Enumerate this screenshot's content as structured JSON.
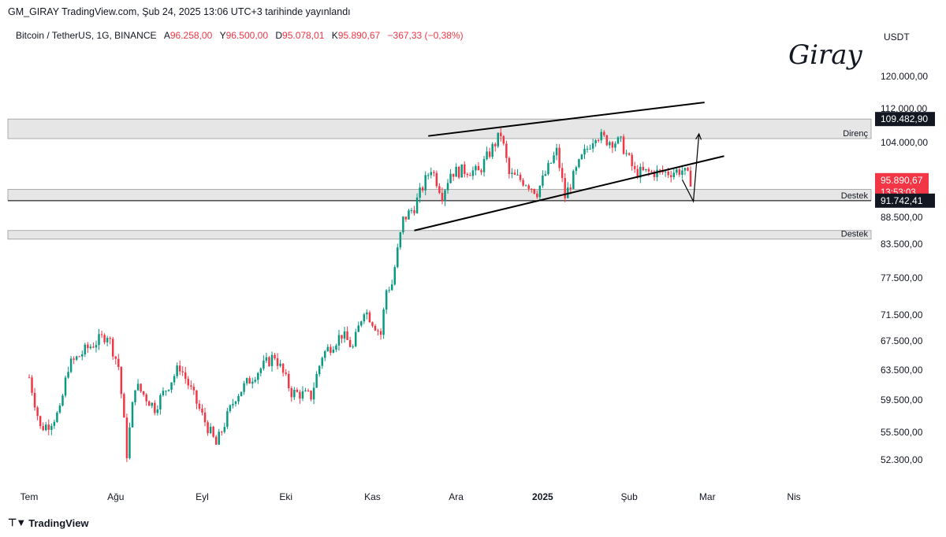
{
  "header": {
    "published": "GM_GIRAY TradingView.com, Şub 24, 2025 13:06 UTC+3 tarihinde yayınlandı"
  },
  "legend": {
    "symbol": "Bitcoin / TetherUS, 1G, BINANCE",
    "open_label": "A",
    "open": "96.258,00",
    "high_label": "Y",
    "high": "96.500,00",
    "low_label": "D",
    "low": "95.078,01",
    "close_label": "K",
    "close": "95.890,67",
    "change": "−367,33 (−0,38%)"
  },
  "watermark": "Giray",
  "footer": {
    "brand": "TradingView",
    "logo": "TV-logo-icon"
  },
  "colors": {
    "up": "#089981",
    "down": "#f23645",
    "zone": "#e3e3e3",
    "line": "#000000"
  },
  "chart_data": {
    "type": "candlestick",
    "symbol": "Bitcoin / TetherUS",
    "interval": "1G",
    "y_axis_unit": "USDT",
    "y_ticks": [
      "120.000,00",
      "112.000,00",
      "104.000,00",
      "88.500,00",
      "83.500,00",
      "77.500,00",
      "71.500,00",
      "67.500,00",
      "63.500,00",
      "59.500,00",
      "55.500,00",
      "52.300,00"
    ],
    "y_tick_values": [
      120000,
      112000,
      104000,
      88500,
      83500,
      77500,
      71500,
      67500,
      63500,
      59500,
      55500,
      52300
    ],
    "x_ticks": [
      "Tem",
      "Ağu",
      "Eyl",
      "Eki",
      "Kas",
      "Ara",
      "2025",
      "Şub",
      "Mar",
      "Nis"
    ],
    "x_tick_dates": [
      "2024-07-01",
      "2024-08-01",
      "2024-09-01",
      "2024-10-01",
      "2024-11-01",
      "2024-12-01",
      "2025-01-01",
      "2025-02-01",
      "2025-03-01",
      "2025-04-01"
    ],
    "price_labels": [
      {
        "text": "109.482,90",
        "value": 109482.9,
        "style": "dark"
      },
      {
        "text": "95.890,67",
        "value": 95890.67,
        "style": "current",
        "sub": "13:53:03"
      },
      {
        "text": "91.742,41",
        "value": 91742.41,
        "style": "dark"
      }
    ],
    "zones": [
      {
        "label": "Direnç",
        "from": 104900,
        "to": 109482.9
      },
      {
        "label": "Destek",
        "from": 91742.41,
        "to": 94000
      },
      {
        "label": "Destek",
        "from": 84400,
        "to": 86000
      }
    ],
    "trendlines": [
      {
        "from": [
          "2024-11-21",
          105500
        ],
        "to": [
          "2025-02-28",
          113500
        ]
      },
      {
        "from": [
          "2024-11-16",
          86000
        ],
        "to": [
          "2025-03-07",
          101000
        ]
      }
    ],
    "horizontal_lines": [
      91742.41
    ],
    "arrow_path": [
      [
        "2025-02-20",
        96000
      ],
      [
        "2025-02-24",
        91600
      ],
      [
        "2025-02-26",
        106000
      ]
    ],
    "ohlc_anchors": [
      [
        "2024-07-01",
        62500
      ],
      [
        "2024-07-05",
        56000
      ],
      [
        "2024-07-08",
        56500
      ],
      [
        "2024-07-12",
        58000
      ],
      [
        "2024-07-15",
        64000
      ],
      [
        "2024-07-22",
        66500
      ],
      [
        "2024-07-29",
        68500
      ],
      [
        "2024-08-02",
        64000
      ],
      [
        "2024-08-05",
        53000
      ],
      [
        "2024-08-08",
        61500
      ],
      [
        "2024-08-15",
        58500
      ],
      [
        "2024-08-24",
        64000
      ],
      [
        "2024-09-01",
        57500
      ],
      [
        "2024-09-06",
        54000
      ],
      [
        "2024-09-13",
        60000
      ],
      [
        "2024-09-20",
        63000
      ],
      [
        "2024-09-27",
        65500
      ],
      [
        "2024-10-03",
        60500
      ],
      [
        "2024-10-10",
        60000
      ],
      [
        "2024-10-14",
        65500
      ],
      [
        "2024-10-21",
        68500
      ],
      [
        "2024-10-25",
        66500
      ],
      [
        "2024-10-29",
        72500
      ],
      [
        "2024-11-04",
        68500
      ],
      [
        "2024-11-06",
        75500
      ],
      [
        "2024-11-08",
        76500
      ],
      [
        "2024-11-12",
        88000
      ],
      [
        "2024-11-16",
        90500
      ],
      [
        "2024-11-22",
        98500
      ],
      [
        "2024-11-26",
        93000
      ],
      [
        "2024-11-29",
        97500
      ],
      [
        "2024-12-05",
        98000
      ],
      [
        "2024-12-09",
        97500
      ],
      [
        "2024-12-17",
        106000
      ],
      [
        "2024-12-20",
        97000
      ],
      [
        "2024-12-26",
        95500
      ],
      [
        "2024-12-30",
        93500
      ],
      [
        "2025-01-06",
        102000
      ],
      [
        "2025-01-09",
        92500
      ],
      [
        "2025-01-15",
        100500
      ],
      [
        "2025-01-20",
        106000
      ],
      [
        "2025-01-24",
        104500
      ],
      [
        "2025-01-29",
        104000
      ],
      [
        "2025-02-03",
        97500
      ],
      [
        "2025-02-10",
        97500
      ],
      [
        "2025-02-15",
        97500
      ],
      [
        "2025-02-20",
        98000
      ],
      [
        "2025-02-23",
        95890
      ]
    ]
  }
}
